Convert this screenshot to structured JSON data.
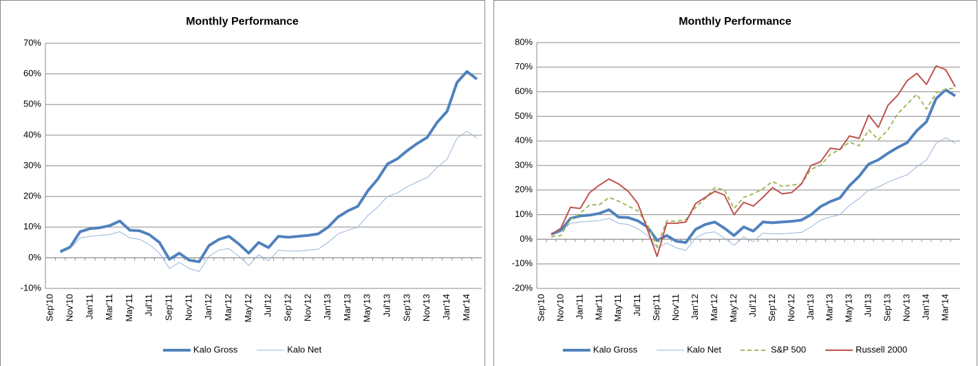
{
  "chart_data": [
    {
      "type": "line",
      "title": "Monthly Performance",
      "categories": [
        "Sep'10",
        null,
        "Nov'10",
        null,
        "Jan'11",
        null,
        "Mar'11",
        null,
        "May'11",
        null,
        "Jul'11",
        null,
        "Sep'11",
        null,
        "Nov'11",
        null,
        "Jan'12",
        null,
        "Mar'12",
        null,
        "May'12",
        null,
        "Jul'12",
        null,
        "Sep'12",
        null,
        "Nov'12",
        null,
        "Jan'13",
        null,
        "Mar'13",
        null,
        "May'13",
        null,
        "Jul'13",
        null,
        "Sep'13",
        null,
        "Nov'13",
        null,
        "Jan'14",
        null,
        "Mar'14",
        null
      ],
      "series": [
        {
          "name": "Kalo Gross",
          "color": "#4f81bd",
          "values": [
            null,
            2,
            3.5,
            8.5,
            9.5,
            9.8,
            10.5,
            12,
            9,
            8.8,
            7.5,
            5,
            -0.5,
            1.5,
            -0.8,
            -1.3,
            4,
            6,
            7,
            4.5,
            1.5,
            5,
            3.3,
            7,
            6.7,
            7,
            7.3,
            7.8,
            10,
            13.3,
            15.3,
            16.8,
            21.8,
            25.6,
            30.6,
            32.3,
            35,
            37.3,
            39.3,
            44.2,
            47.8,
            57.2,
            60.8,
            58.3
          ]
        },
        {
          "name": "Kalo Net",
          "color": "#95b3d7",
          "values": [
            null,
            1.5,
            3,
            6.5,
            7,
            7.3,
            7.6,
            8.5,
            6.5,
            6,
            4.3,
            1.5,
            -3.5,
            -1.5,
            -3.5,
            -4.5,
            0.5,
            2.5,
            3,
            0.5,
            -2.5,
            1,
            -1,
            2.5,
            2.2,
            2.2,
            2.5,
            2.8,
            5,
            7.8,
            9,
            10,
            13.8,
            16.5,
            20,
            21.2,
            23.2,
            24.8,
            26.2,
            29.5,
            32.2,
            39,
            41.3,
            39
          ]
        }
      ],
      "ylim": [
        -10,
        70
      ],
      "yticks": [
        {
          "value": -10,
          "label": "-10%"
        },
        {
          "value": 0,
          "label": "0%"
        },
        {
          "value": 10,
          "label": "10%"
        },
        {
          "value": 20,
          "label": "20%"
        },
        {
          "value": 30,
          "label": "30%"
        },
        {
          "value": 40,
          "label": "40%"
        },
        {
          "value": 50,
          "label": "50%"
        },
        {
          "value": 60,
          "label": "60%"
        },
        {
          "value": 70,
          "label": "70%"
        }
      ],
      "grid": true,
      "legend": "bottom"
    },
    {
      "type": "line",
      "title": "Monthly Performance",
      "categories": [
        "Sep'10",
        null,
        "Nov'10",
        null,
        "Jan'11",
        null,
        "Mar'11",
        null,
        "May'11",
        null,
        "Jul'11",
        null,
        "Sep'11",
        null,
        "Nov'11",
        null,
        "Jan'12",
        null,
        "Mar'12",
        null,
        "May'12",
        null,
        "Jul'12",
        null,
        "Sep'12",
        null,
        "Nov'12",
        null,
        "Jan'13",
        null,
        "Mar'13",
        null,
        "May'13",
        null,
        "Jul'13",
        null,
        "Sep'13",
        null,
        "Nov'13",
        null,
        "Jan'14",
        null,
        "Mar'14",
        null
      ],
      "series": [
        {
          "name": "Kalo Gross",
          "color": "#4f81bd",
          "values": [
            null,
            2,
            3.5,
            8.5,
            9.5,
            9.8,
            10.5,
            12,
            9,
            8.8,
            7.5,
            5,
            -0.5,
            1.5,
            -0.8,
            -1.3,
            4,
            6,
            7,
            4.5,
            1.5,
            5,
            3.3,
            7,
            6.7,
            7,
            7.3,
            7.8,
            10,
            13.3,
            15.3,
            16.8,
            21.8,
            25.6,
            30.6,
            32.3,
            35,
            37.3,
            39.3,
            44.2,
            47.8,
            57.2,
            60.8,
            58.3
          ]
        },
        {
          "name": "Kalo Net",
          "color": "#95b3d7",
          "values": [
            null,
            1.5,
            3,
            6.5,
            7,
            7.3,
            7.6,
            8.5,
            6.5,
            6,
            4.3,
            1.5,
            -3.5,
            -1.5,
            -3.5,
            -4.5,
            0.5,
            2.5,
            3,
            0.5,
            -2.5,
            1,
            -1,
            2.5,
            2.2,
            2.2,
            2.5,
            2.8,
            5,
            7.8,
            9,
            10,
            13.8,
            16.5,
            20,
            21.2,
            23.2,
            24.8,
            26.2,
            29.5,
            32.2,
            39,
            41.3,
            39
          ]
        },
        {
          "name": "S&P 500",
          "color": "#9bbb59",
          "values": [
            null,
            1,
            1.5,
            8,
            10.5,
            14,
            14,
            17,
            15.5,
            13.5,
            11.5,
            6,
            -3,
            7.5,
            7.3,
            8,
            13,
            16.5,
            21,
            20,
            12.5,
            17,
            18.5,
            20.5,
            23.5,
            21.5,
            22,
            22.5,
            28.5,
            30,
            34.5,
            36.5,
            39.5,
            38,
            44.5,
            40.5,
            44.5,
            51,
            55,
            59,
            53,
            59.5,
            61,
            61.5
          ]
        },
        {
          "name": "Russell 2000",
          "color": "#c0504d",
          "values": [
            null,
            2,
            4.5,
            13,
            12.5,
            19,
            22,
            24.5,
            22.5,
            19.5,
            14.5,
            4,
            -7,
            6.5,
            6.5,
            7,
            14.5,
            17,
            19.5,
            18,
            10,
            15,
            13.5,
            17,
            21,
            18.5,
            19,
            22.5,
            30,
            31.5,
            37,
            36.5,
            42,
            41,
            50.5,
            45.5,
            54.5,
            58.5,
            64.5,
            67.5,
            63,
            70.5,
            69,
            62
          ]
        }
      ],
      "ylim": [
        -20,
        80
      ],
      "yticks": [
        {
          "value": -20,
          "label": "-20%"
        },
        {
          "value": -10,
          "label": "-10%"
        },
        {
          "value": 0,
          "label": "0%"
        },
        {
          "value": 10,
          "label": "10%"
        },
        {
          "value": 20,
          "label": "20%"
        },
        {
          "value": 30,
          "label": "30%"
        },
        {
          "value": 40,
          "label": "40%"
        },
        {
          "value": 50,
          "label": "50%"
        },
        {
          "value": 60,
          "label": "60%"
        },
        {
          "value": 70,
          "label": "70%"
        },
        {
          "value": 80,
          "label": "80%"
        }
      ],
      "grid": true,
      "legend": "bottom"
    }
  ]
}
